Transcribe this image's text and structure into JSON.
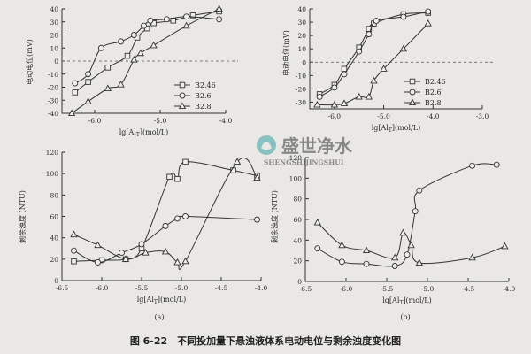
{
  "figure_caption": "图 6-22　不同投加量下悬浊液体系电动电位与剩余浊度变化图",
  "watermark": {
    "title": "盛世净水",
    "subtitle": "SHENGSHIJINGSHUI"
  },
  "chart_data": [
    {
      "id": "zeta-a",
      "type": "line",
      "ylabel": "电动电位(mV)",
      "xlabel": "lg[Al_T](mol/L)",
      "xlim": [
        -6.5,
        -4.0
      ],
      "ylim": [
        -40,
        40
      ],
      "xticks": [
        -6.0,
        -5.0,
        -4.0
      ],
      "xtick_labels": [
        "-6.0",
        "-5.0",
        "-4.0"
      ],
      "yticks": [
        -40,
        -30,
        -20,
        -10,
        0,
        10,
        20,
        30,
        40
      ],
      "ytick_labels": [
        "-40",
        "-30",
        "-20",
        "-10",
        "0",
        "10",
        "20",
        "30",
        "40"
      ],
      "zero_line": "dashed",
      "legend_position": "right",
      "series": [
        {
          "name": "B2.46",
          "marker": "square",
          "x": [
            -6.3,
            -6.1,
            -5.8,
            -5.5,
            -5.35,
            -5.2,
            -5.1,
            -4.8,
            -4.5,
            -4.1
          ],
          "y": [
            -24,
            -16,
            -5,
            4,
            18,
            25,
            29,
            31,
            35,
            38
          ]
        },
        {
          "name": "B2.6",
          "marker": "circle",
          "x": [
            -6.3,
            -6.1,
            -5.9,
            -5.6,
            -5.4,
            -5.25,
            -5.15,
            -4.9,
            -4.6,
            -4.1
          ],
          "y": [
            -17,
            -10,
            10,
            15,
            20,
            27,
            31,
            32,
            34,
            32
          ]
        },
        {
          "name": "B2.8",
          "marker": "triangle",
          "x": [
            -6.35,
            -6.1,
            -5.8,
            -5.6,
            -5.4,
            -5.3,
            -5.1,
            -4.6,
            -4.1
          ],
          "y": [
            -40,
            -31,
            -21,
            -18,
            1,
            6,
            12,
            27,
            40
          ]
        }
      ]
    },
    {
      "id": "zeta-b",
      "type": "line",
      "ylabel": "电动电位(mV)",
      "xlabel": "lg[Al_T](mol/L)",
      "xlim": [
        -6.5,
        -3.0
      ],
      "ylim": [
        -35,
        40
      ],
      "xticks": [
        -6.0,
        -5.0,
        -4.0,
        -3.0
      ],
      "xtick_labels": [
        "-6.0",
        "-5.0",
        "-4.0",
        "-3.0"
      ],
      "yticks": [
        -30,
        -20,
        -10,
        0,
        10,
        20,
        30,
        40
      ],
      "ytick_labels": [
        "-30",
        "-20",
        "-10",
        "0",
        "10",
        "20",
        "30",
        "40"
      ],
      "zero_line": "dashed",
      "legend_position": "right",
      "series": [
        {
          "name": "B2.46",
          "marker": "square",
          "x": [
            -6.3,
            -6.0,
            -5.8,
            -5.5,
            -5.3,
            -5.2,
            -4.6,
            -4.1
          ],
          "y": [
            -24,
            -17,
            -5,
            11,
            25,
            29,
            36,
            37
          ]
        },
        {
          "name": "B2.6",
          "marker": "circle",
          "x": [
            -6.3,
            -6.0,
            -5.8,
            -5.5,
            -5.3,
            -5.15,
            -4.6,
            -4.1
          ],
          "y": [
            -26,
            -19,
            -9,
            8,
            21,
            31,
            34,
            38
          ]
        },
        {
          "name": "B2.8",
          "marker": "triangle",
          "x": [
            -6.35,
            -6.0,
            -5.8,
            -5.5,
            -5.3,
            -5.2,
            -5.0,
            -4.6,
            -4.1
          ],
          "y": [
            -32,
            -32,
            -31,
            -26,
            -26,
            -14,
            -5,
            10,
            29
          ]
        }
      ]
    },
    {
      "id": "turbidity-a",
      "type": "line",
      "panel_label": "(a)",
      "ylabel": "剩余浊度 (NTU)",
      "xlabel": "lg[Al_T](mol/L)",
      "xlim": [
        -6.5,
        -4.0
      ],
      "ylim": [
        0,
        120
      ],
      "xticks": [
        -6.5,
        -6.0,
        -5.5,
        -5.0,
        -4.5,
        -4.0
      ],
      "xtick_labels": [
        "-6.5",
        "-6.0",
        "-5.5",
        "-5.0",
        "-4.5",
        "-4.0"
      ],
      "yticks": [
        0,
        20,
        40,
        60,
        80,
        100,
        120
      ],
      "ytick_labels": [
        "0",
        "20",
        "40",
        "60",
        "80",
        "100",
        "120"
      ],
      "series": [
        {
          "name": "B2.46",
          "marker": "square",
          "x": [
            -6.35,
            -6.0,
            -5.7,
            -5.5,
            -5.15,
            -5.05,
            -4.95,
            -4.35,
            -4.05
          ],
          "y": [
            18,
            19,
            20,
            30,
            97,
            95,
            111,
            103,
            98
          ]
        },
        {
          "name": "B2.6",
          "marker": "circle",
          "x": [
            -6.35,
            -6.05,
            -5.75,
            -5.5,
            -5.2,
            -5.05,
            -4.95,
            -4.05
          ],
          "y": [
            28,
            17,
            26,
            34,
            51,
            58,
            60,
            57
          ]
        },
        {
          "name": "B2.8",
          "marker": "triangle",
          "x": [
            -6.35,
            -6.05,
            -5.7,
            -5.45,
            -5.2,
            -5.05,
            -4.95,
            -4.3,
            -4.05
          ],
          "y": [
            43,
            33,
            20,
            26,
            27,
            17,
            18,
            111,
            96
          ]
        }
      ]
    },
    {
      "id": "turbidity-b",
      "type": "line",
      "panel_label": "(b)",
      "ylabel": "剩余浊度 (NTU)",
      "xlabel": "lg[Al_T](mol/L)",
      "xlim": [
        -6.5,
        -4.0
      ],
      "ylim": [
        0,
        120
      ],
      "xticks": [
        -6.5,
        -6.0,
        -5.5,
        -5.0,
        -4.5,
        -4.0
      ],
      "xtick_labels": [
        "-6.5",
        "-6.0",
        "-5.5",
        "-5.0",
        "-4.5",
        "-4.0"
      ],
      "yticks": [
        0,
        20,
        40,
        60,
        80,
        100,
        120
      ],
      "ytick_labels": [
        "0",
        "20",
        "40",
        "60",
        "80",
        "100",
        "120"
      ],
      "series": [
        {
          "name": "B2.6",
          "marker": "circle",
          "x": [
            -6.35,
            -6.05,
            -5.75,
            -5.4,
            -5.25,
            -5.15,
            -5.1,
            -4.45,
            -4.15
          ],
          "y": [
            32,
            19,
            17,
            15,
            26,
            68,
            88,
            112,
            113
          ]
        },
        {
          "name": "B2.8",
          "marker": "triangle",
          "x": [
            -6.35,
            -6.05,
            -5.75,
            -5.4,
            -5.3,
            -5.2,
            -5.1,
            -4.45,
            -4.05
          ],
          "y": [
            57,
            35,
            30,
            23,
            47,
            35,
            18,
            23,
            34
          ]
        }
      ]
    }
  ]
}
